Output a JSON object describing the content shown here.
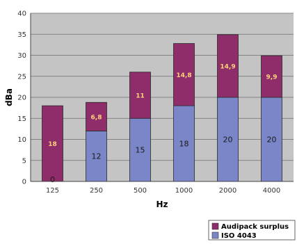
{
  "chart_data": {
    "type": "bar",
    "stacked": true,
    "categories": [
      "125",
      "250",
      "500",
      "1000",
      "2000",
      "4000"
    ],
    "series": [
      {
        "name": "ISO 4043",
        "values": [
          0,
          12,
          15,
          18,
          20,
          20
        ],
        "labels": [
          "0",
          "12",
          "15",
          "18",
          "20",
          "20"
        ],
        "color": "#7b86c8"
      },
      {
        "name": "Audipack surplus",
        "values": [
          18,
          6.8,
          11,
          14.8,
          14.9,
          9.9
        ],
        "labels": [
          "18",
          "6,8",
          "11",
          "14,8",
          "14,9",
          "9,9"
        ],
        "color": "#8e2d6a"
      }
    ],
    "xlabel": "Hz",
    "ylabel": "dBa",
    "ylim": [
      0,
      40
    ],
    "yticks": [
      0,
      5,
      10,
      15,
      20,
      25,
      30,
      35,
      40
    ],
    "ytick_labels": [
      "0",
      "5",
      "10",
      "15",
      "20",
      "25",
      "30",
      "35",
      "40"
    ],
    "grid": true,
    "legend": "bottom-right",
    "plot_background": "#c4c4c4",
    "grid_color": "#6e6e6e",
    "iso_label_color": "#1a1a1a",
    "surplus_label_color": "#ffd27a"
  },
  "legend": {
    "entries": [
      "Audipack surplus",
      "ISO 4043"
    ]
  }
}
